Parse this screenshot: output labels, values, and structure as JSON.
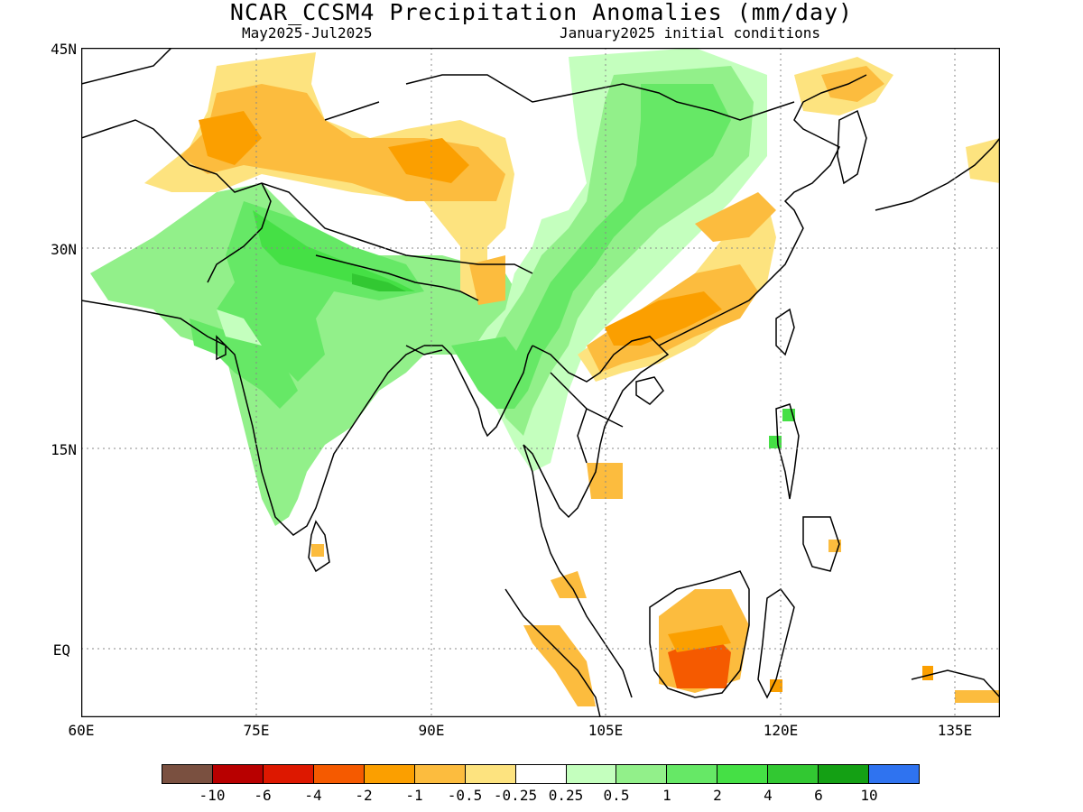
{
  "header": {
    "title": "NCAR_CCSM4 Precipitation Anomalies (mm/day)",
    "period": "May2025-Jul2025",
    "init": "January2025 initial conditions"
  },
  "axes": {
    "lat_labels": [
      "45N",
      "30N",
      "15N",
      "EQ"
    ],
    "lon_labels": [
      "60E",
      "75E",
      "90E",
      "105E",
      "120E",
      "135E"
    ]
  },
  "legend": {
    "colors": [
      "#7a5040",
      "#b80000",
      "#dd1800",
      "#f55a00",
      "#fb9f00",
      "#fcbc3e",
      "#fde37f",
      "#ffffff",
      "#c4ffbe",
      "#92f08a",
      "#66e866",
      "#45e045",
      "#32c832",
      "#14a014",
      "#2f73f0"
    ],
    "labels": [
      "-10",
      "-6",
      "-4",
      "-2",
      "-1",
      "-0.5",
      "-0.25",
      "0.25",
      "0.5",
      "1",
      "2",
      "4",
      "6",
      "10"
    ]
  },
  "map": {
    "lon_range": [
      60,
      140
    ],
    "lat_range": [
      -6,
      45
    ],
    "colors": {
      "lg": "#c4ffbe",
      "g1": "#92f08a",
      "g2": "#66e866",
      "g3": "#45e045",
      "g4": "#32c832",
      "y": "#fde37f",
      "o1": "#fcbc3e",
      "o2": "#fb9f00",
      "o3": "#f55a00"
    }
  }
}
